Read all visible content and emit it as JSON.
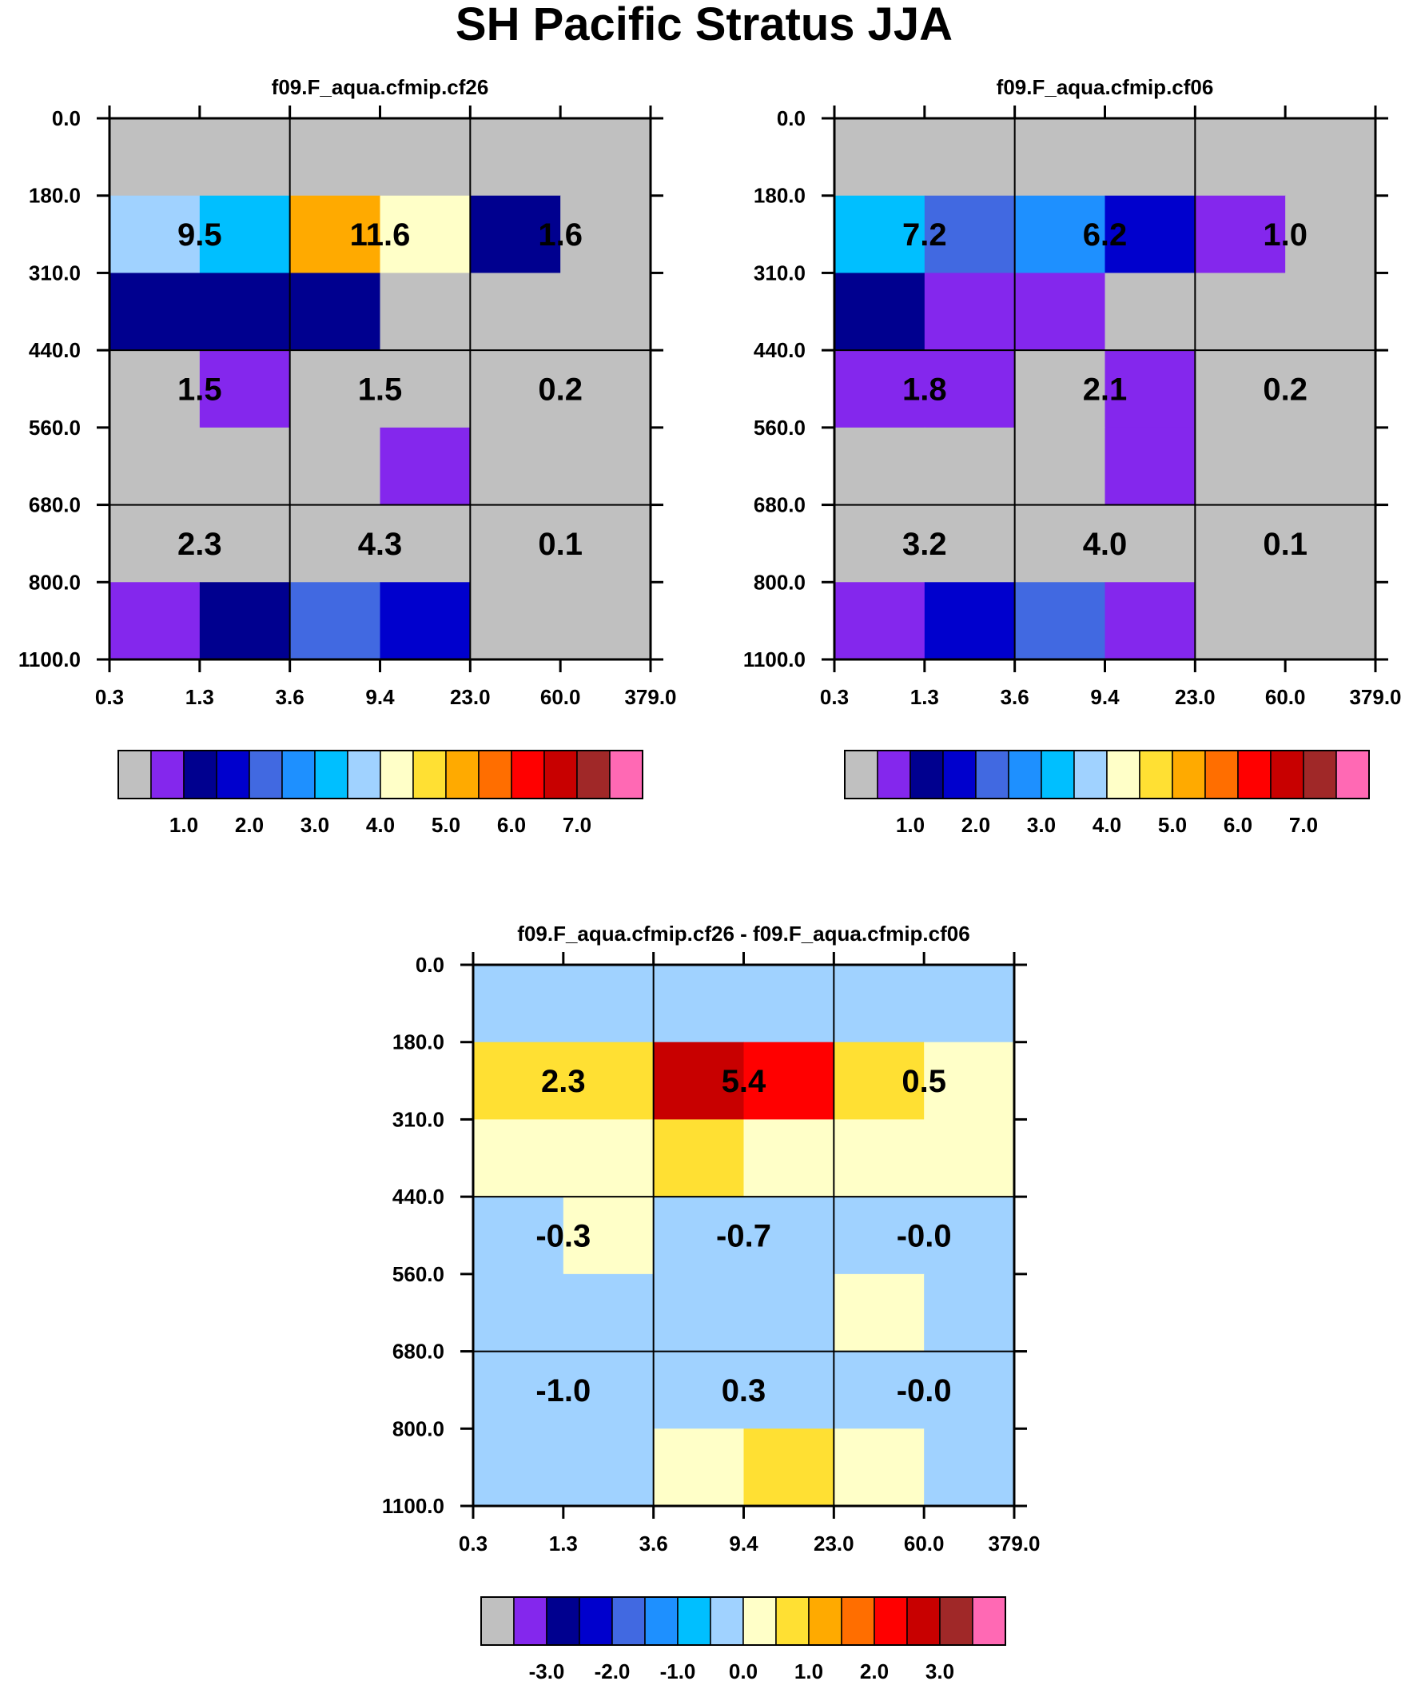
{
  "title": "SH Pacific Stratus JJA",
  "colors": {
    "palette": [
      "#c0c0c0",
      "#8427ed",
      "#00008f",
      "#0000cd",
      "#4169e1",
      "#1e90ff",
      "#00bfff",
      "#a0d2ff",
      "#ffffc8",
      "#ffe033",
      "#ffaa00",
      "#ff6e00",
      "#ff0000",
      "#c80000",
      "#a02828",
      "#ff69b4"
    ],
    "frame": "#000000",
    "background": "#ffffff"
  },
  "chart_data": [
    {
      "type": "heatmap",
      "title": "f09.F_aqua.cfmip.cf26",
      "x_ticks": [
        "0.3",
        "1.3",
        "3.6",
        "9.4",
        "23.0",
        "60.0",
        "379.0"
      ],
      "y_ticks": [
        "0.0",
        "180.0",
        "310.0",
        "440.0",
        "560.0",
        "680.0",
        "800.0",
        "1100.0"
      ],
      "colorbar_labels": [
        "1.0",
        "2.0",
        "3.0",
        "4.0",
        "5.0",
        "6.0",
        "7.0"
      ],
      "cell_color_index": [
        [
          0,
          0,
          0,
          0,
          0,
          0
        ],
        [
          7,
          6,
          10,
          8,
          2,
          0
        ],
        [
          2,
          2,
          2,
          0,
          0,
          0
        ],
        [
          0,
          1,
          0,
          0,
          0,
          0
        ],
        [
          0,
          0,
          0,
          1,
          0,
          0
        ],
        [
          0,
          0,
          0,
          0,
          0,
          0
        ],
        [
          1,
          2,
          4,
          3,
          0,
          0
        ]
      ],
      "block_values": [
        [
          "9.5",
          "11.6",
          "1.6"
        ],
        [
          "1.5",
          "1.5",
          "0.2"
        ],
        [
          "2.3",
          "4.3",
          "0.1"
        ]
      ]
    },
    {
      "type": "heatmap",
      "title": "f09.F_aqua.cfmip.cf06",
      "x_ticks": [
        "0.3",
        "1.3",
        "3.6",
        "9.4",
        "23.0",
        "60.0",
        "379.0"
      ],
      "y_ticks": [
        "0.0",
        "180.0",
        "310.0",
        "440.0",
        "560.0",
        "680.0",
        "800.0",
        "1100.0"
      ],
      "colorbar_labels": [
        "1.0",
        "2.0",
        "3.0",
        "4.0",
        "5.0",
        "6.0",
        "7.0"
      ],
      "cell_color_index": [
        [
          0,
          0,
          0,
          0,
          0,
          0
        ],
        [
          6,
          4,
          5,
          3,
          1,
          0
        ],
        [
          2,
          1,
          1,
          0,
          0,
          0
        ],
        [
          1,
          1,
          0,
          1,
          0,
          0
        ],
        [
          0,
          0,
          0,
          1,
          0,
          0
        ],
        [
          0,
          0,
          0,
          0,
          0,
          0
        ],
        [
          1,
          3,
          4,
          1,
          0,
          0
        ]
      ],
      "block_values": [
        [
          "7.2",
          "6.2",
          "1.0"
        ],
        [
          "1.8",
          "2.1",
          "0.2"
        ],
        [
          "3.2",
          "4.0",
          "0.1"
        ]
      ]
    },
    {
      "type": "heatmap",
      "title": "f09.F_aqua.cfmip.cf26 - f09.F_aqua.cfmip.cf06",
      "x_ticks": [
        "0.3",
        "1.3",
        "3.6",
        "9.4",
        "23.0",
        "60.0",
        "379.0"
      ],
      "y_ticks": [
        "0.0",
        "180.0",
        "310.0",
        "440.0",
        "560.0",
        "680.0",
        "800.0",
        "1100.0"
      ],
      "colorbar_labels": [
        "-3.0",
        "-2.0",
        "-1.0",
        "0.0",
        "1.0",
        "2.0",
        "3.0"
      ],
      "cell_color_index": [
        [
          7,
          7,
          7,
          7,
          7,
          7
        ],
        [
          9,
          9,
          13,
          12,
          9,
          8
        ],
        [
          8,
          8,
          9,
          8,
          8,
          8
        ],
        [
          7,
          8,
          7,
          7,
          7,
          7
        ],
        [
          7,
          7,
          7,
          7,
          8,
          7
        ],
        [
          7,
          7,
          7,
          7,
          7,
          7
        ],
        [
          7,
          7,
          8,
          9,
          8,
          7
        ]
      ],
      "block_values": [
        [
          "2.3",
          "5.4",
          "0.5"
        ],
        [
          "-0.3",
          "-0.7",
          "-0.0"
        ],
        [
          "-1.0",
          "0.3",
          "-0.0"
        ]
      ]
    }
  ]
}
